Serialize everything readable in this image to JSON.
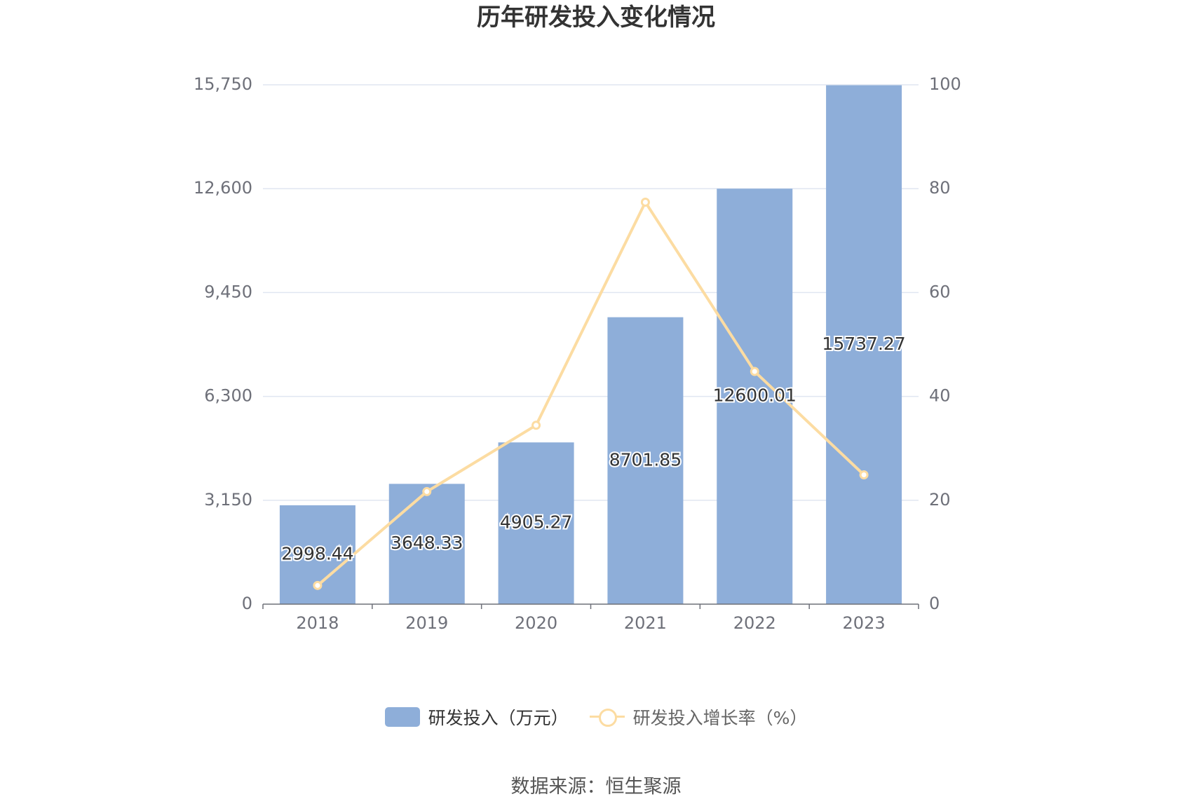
{
  "title": "历年研发投入变化情况",
  "source": "数据来源：恒生聚源",
  "colors": {
    "bar": "#8eaed9",
    "line": "#fcdca2",
    "axis_text": "#6e7079",
    "grid": "#e0e6f1",
    "axis_line": "#6e7079"
  },
  "legend": {
    "bar_label": "研发投入（万元）",
    "line_label": "研发投入增长率（%）"
  },
  "chart_data": {
    "type": "bar",
    "categories": [
      "2018",
      "2019",
      "2020",
      "2021",
      "2022",
      "2023"
    ],
    "series": [
      {
        "name": "研发投入（万元）",
        "type": "bar",
        "axis": "left",
        "values": [
          2998.44,
          3648.33,
          4905.27,
          8701.85,
          12600.01,
          15737.27
        ],
        "labels": [
          "2998.44",
          "3648.33",
          "4905.27",
          "8701.85",
          "12600.01",
          "15737.27"
        ]
      },
      {
        "name": "研发投入增长率（%）",
        "type": "line",
        "axis": "right",
        "values": [
          3.6,
          21.67,
          34.45,
          77.4,
          44.8,
          24.9
        ]
      }
    ],
    "left_axis": {
      "ylim": [
        0,
        15750
      ],
      "ticks": [
        0,
        3150,
        6300,
        9450,
        12600,
        15750
      ],
      "tick_labels": [
        "0",
        "3,150",
        "6,300",
        "9,450",
        "12,600",
        "15,750"
      ]
    },
    "right_axis": {
      "ylim": [
        0,
        100
      ],
      "ticks": [
        0,
        20,
        40,
        60,
        80,
        100
      ],
      "tick_labels": [
        "0",
        "20",
        "40",
        "60",
        "80",
        "100"
      ]
    },
    "grid": true,
    "legend_position": "bottom"
  }
}
